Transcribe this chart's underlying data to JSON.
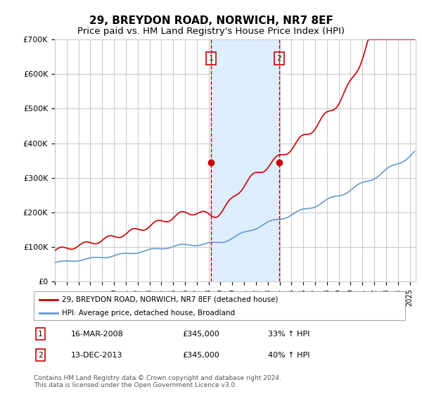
{
  "title": "29, BREYDON ROAD, NORWICH, NR7 8EF",
  "subtitle": "Price paid vs. HM Land Registry's House Price Index (HPI)",
  "title_fontsize": 11,
  "subtitle_fontsize": 9.5,
  "ylim": [
    0,
    700000
  ],
  "xlim_start": 1995.0,
  "xlim_end": 2025.5,
  "yticks": [
    0,
    100000,
    200000,
    300000,
    400000,
    500000,
    600000,
    700000
  ],
  "ytick_labels": [
    "£0",
    "£100K",
    "£200K",
    "£300K",
    "£400K",
    "£500K",
    "£600K",
    "£700K"
  ],
  "sale1_year": 2008.21,
  "sale1_price": 345000,
  "sale1_label": "16-MAR-2008",
  "sale1_pct": "33% ↑ HPI",
  "sale2_year": 2013.96,
  "sale2_price": 345000,
  "sale2_label": "13-DEC-2013",
  "sale2_pct": "40% ↑ HPI",
  "property_color": "#cc0000",
  "hpi_color": "#6699cc",
  "shade_color": "#ddeeff",
  "legend_property": "29, BREYDON ROAD, NORWICH, NR7 8EF (detached house)",
  "legend_hpi": "HPI: Average price, detached house, Broadland",
  "footnote1": "Contains HM Land Registry data © Crown copyright and database right 2024.",
  "footnote2": "This data is licensed under the Open Government Licence v3.0.",
  "background_color": "#ffffff",
  "grid_color": "#cccccc"
}
